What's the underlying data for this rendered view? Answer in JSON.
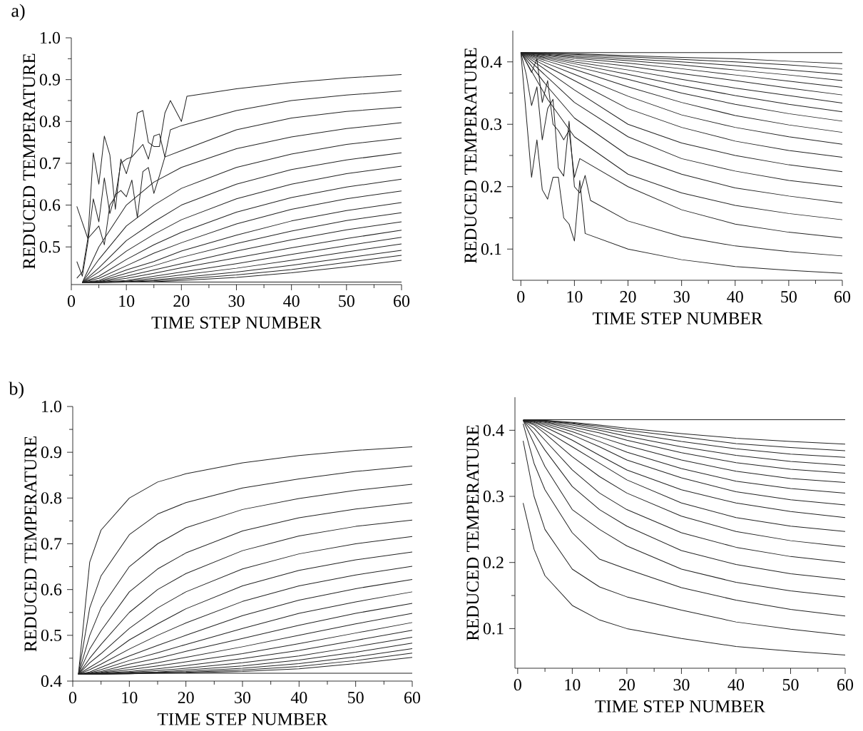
{
  "chart_data": [
    {
      "type": "line",
      "xlabel": "TIME STEP NUMBER",
      "ylabel": "REDUCED TEMPERATURE",
      "annotations": [
        "a)"
      ],
      "color": "#222222",
      "xlim": [
        0,
        60
      ],
      "ylim": [
        0.41,
        1.0
      ],
      "xticks": [
        0,
        10,
        20,
        30,
        40,
        50,
        60
      ],
      "yticks": [
        0.5,
        0.6,
        0.7,
        0.8,
        0.9,
        {
          "value": 1.0,
          "label": "1.0"
        }
      ],
      "x": [
        2,
        5,
        10,
        15,
        20,
        30,
        40,
        50,
        60
      ],
      "series": [
        {
          "x": [
            1,
            3,
            4,
            5,
            6,
            7,
            8,
            9,
            10,
            11,
            12,
            13,
            14,
            15,
            16,
            17,
            18,
            20,
            21,
            30,
            40,
            50,
            60
          ],
          "values": [
            0.597,
            0.52,
            0.725,
            0.65,
            0.765,
            0.72,
            0.59,
            0.71,
            0.675,
            0.72,
            0.82,
            0.826,
            0.75,
            0.74,
            0.74,
            0.82,
            0.85,
            0.8,
            0.86,
            0.878,
            0.893,
            0.904,
            0.912
          ]
        },
        {
          "x": [
            1,
            2,
            3,
            4,
            5,
            6,
            7,
            8,
            9,
            10,
            11,
            12,
            13,
            14,
            15,
            16,
            17,
            18,
            20,
            30,
            40,
            50,
            60
          ],
          "values": [
            0.465,
            0.43,
            0.51,
            0.615,
            0.56,
            0.665,
            0.58,
            0.625,
            0.635,
            0.62,
            0.66,
            0.57,
            0.68,
            0.69,
            0.628,
            0.67,
            0.715,
            0.78,
            0.79,
            0.826,
            0.85,
            0.863,
            0.873
          ]
        },
        {
          "x": [
            1,
            2,
            3,
            5,
            6,
            7,
            8,
            9,
            10,
            11,
            13,
            14,
            15,
            16,
            17,
            20,
            30,
            40,
            50,
            60
          ],
          "values": [
            0.425,
            0.44,
            0.52,
            0.55,
            0.505,
            0.6,
            0.62,
            0.7,
            0.71,
            0.715,
            0.745,
            0.71,
            0.765,
            0.77,
            0.715,
            0.73,
            0.78,
            0.808,
            0.824,
            0.834
          ]
        },
        {
          "values": [
            0.415,
            0.5,
            0.6,
            0.655,
            0.69,
            0.735,
            0.763,
            0.783,
            0.797
          ]
        },
        {
          "values": [
            0.415,
            0.47,
            0.55,
            0.6,
            0.64,
            0.69,
            0.722,
            0.745,
            0.76
          ]
        },
        {
          "values": [
            0.415,
            0.45,
            0.515,
            0.56,
            0.6,
            0.65,
            0.685,
            0.708,
            0.725
          ]
        },
        {
          "values": [
            0.415,
            0.44,
            0.49,
            0.53,
            0.565,
            0.615,
            0.65,
            0.675,
            0.693
          ]
        },
        {
          "values": [
            0.415,
            0.43,
            0.47,
            0.505,
            0.535,
            0.583,
            0.618,
            0.643,
            0.662
          ]
        },
        {
          "values": [
            0.415,
            0.425,
            0.455,
            0.485,
            0.51,
            0.555,
            0.59,
            0.615,
            0.634
          ]
        },
        {
          "values": [
            0.415,
            0.42,
            0.445,
            0.465,
            0.49,
            0.528,
            0.562,
            0.587,
            0.606
          ]
        },
        {
          "values": [
            0.415,
            0.418,
            0.437,
            0.455,
            0.475,
            0.508,
            0.538,
            0.563,
            0.582
          ]
        },
        {
          "values": [
            0.415,
            0.417,
            0.43,
            0.445,
            0.46,
            0.49,
            0.517,
            0.541,
            0.56
          ]
        },
        {
          "values": [
            0.415,
            0.416,
            0.425,
            0.437,
            0.45,
            0.474,
            0.498,
            0.52,
            0.54
          ]
        },
        {
          "values": [
            0.415,
            0.416,
            0.42,
            0.43,
            0.44,
            0.46,
            0.482,
            0.503,
            0.523
          ]
        },
        {
          "values": [
            0.415,
            0.415,
            0.418,
            0.425,
            0.433,
            0.449,
            0.468,
            0.488,
            0.507
          ]
        },
        {
          "values": [
            0.415,
            0.415,
            0.417,
            0.421,
            0.427,
            0.44,
            0.456,
            0.474,
            0.492
          ]
        },
        {
          "values": [
            0.415,
            0.415,
            0.416,
            0.419,
            0.423,
            0.433,
            0.446,
            0.463,
            0.48
          ]
        },
        {
          "values": [
            0.415,
            0.415,
            0.416,
            0.417,
            0.42,
            0.427,
            0.438,
            0.452,
            0.468
          ]
        },
        {
          "values": [
            0.416,
            0.416,
            0.416,
            0.416,
            0.416,
            0.416,
            0.416,
            0.416,
            0.416
          ]
        }
      ]
    },
    {
      "type": "line",
      "xlabel": "TIME STEP NUMBER",
      "ylabel": "REDUCED TEMPERATURE",
      "color": "#222222",
      "xlim": [
        -1.5,
        60
      ],
      "ylim": [
        0.05,
        0.45
      ],
      "xticks": [
        0,
        10,
        20,
        30,
        40,
        50,
        60
      ],
      "yticks": [
        0.1,
        0.2,
        0.3,
        0.4
      ],
      "x": [
        0,
        5,
        10,
        20,
        30,
        40,
        50,
        60
      ],
      "series": [
        {
          "x": [
            0,
            2,
            3,
            4,
            5,
            6,
            7,
            8,
            9,
            10,
            11,
            12,
            20,
            30,
            40,
            50,
            60
          ],
          "values": [
            0.415,
            0.215,
            0.275,
            0.195,
            0.18,
            0.215,
            0.215,
            0.15,
            0.14,
            0.113,
            0.21,
            0.125,
            0.1,
            0.083,
            0.072,
            0.066,
            0.061
          ]
        },
        {
          "x": [
            0,
            1,
            2,
            3,
            4,
            5,
            6,
            7,
            8,
            9,
            10,
            11,
            12,
            13,
            20,
            30,
            40,
            50,
            60
          ],
          "values": [
            0.415,
            0.38,
            0.33,
            0.36,
            0.275,
            0.325,
            0.34,
            0.23,
            0.217,
            0.305,
            0.2,
            0.19,
            0.218,
            0.178,
            0.145,
            0.12,
            0.105,
            0.096,
            0.089
          ]
        },
        {
          "x": [
            0,
            1,
            2,
            3,
            4,
            5,
            6,
            7,
            8,
            9,
            10,
            11,
            20,
            30,
            40,
            50,
            60
          ],
          "values": [
            0.415,
            0.4,
            0.383,
            0.405,
            0.335,
            0.37,
            0.3,
            0.29,
            0.275,
            0.29,
            0.215,
            0.245,
            0.2,
            0.163,
            0.14,
            0.127,
            0.118
          ]
        },
        {
          "values": [
            0.415,
            0.34,
            0.28,
            0.22,
            0.19,
            0.17,
            0.157,
            0.147
          ]
        },
        {
          "values": [
            0.415,
            0.36,
            0.31,
            0.25,
            0.22,
            0.198,
            0.185,
            0.174
          ]
        },
        {
          "values": [
            0.415,
            0.375,
            0.335,
            0.28,
            0.245,
            0.225,
            0.21,
            0.2
          ]
        },
        {
          "values": [
            0.415,
            0.385,
            0.355,
            0.3,
            0.27,
            0.25,
            0.235,
            0.224
          ]
        },
        {
          "values": [
            0.415,
            0.392,
            0.37,
            0.325,
            0.295,
            0.273,
            0.258,
            0.247
          ]
        },
        {
          "values": [
            0.415,
            0.397,
            0.38,
            0.345,
            0.315,
            0.295,
            0.28,
            0.268
          ]
        },
        {
          "values": [
            0.415,
            0.401,
            0.388,
            0.36,
            0.335,
            0.314,
            0.299,
            0.287
          ]
        },
        {
          "values": [
            0.415,
            0.404,
            0.393,
            0.372,
            0.35,
            0.332,
            0.317,
            0.305
          ]
        },
        {
          "values": [
            0.415,
            0.406,
            0.397,
            0.38,
            0.362,
            0.346,
            0.332,
            0.32
          ]
        },
        {
          "values": [
            0.415,
            0.408,
            0.4,
            0.387,
            0.372,
            0.358,
            0.346,
            0.334
          ]
        },
        {
          "values": [
            0.415,
            0.41,
            0.403,
            0.393,
            0.381,
            0.37,
            0.358,
            0.347
          ]
        },
        {
          "values": [
            0.415,
            0.411,
            0.406,
            0.398,
            0.389,
            0.379,
            0.369,
            0.359
          ]
        },
        {
          "values": [
            0.415,
            0.412,
            0.408,
            0.402,
            0.395,
            0.387,
            0.379,
            0.37
          ]
        },
        {
          "values": [
            0.415,
            0.413,
            0.41,
            0.405,
            0.4,
            0.394,
            0.387,
            0.38
          ]
        },
        {
          "values": [
            0.415,
            0.414,
            0.412,
            0.408,
            0.404,
            0.4,
            0.395,
            0.389
          ]
        },
        {
          "values": [
            0.415,
            0.414,
            0.413,
            0.41,
            0.407,
            0.405,
            0.401,
            0.397
          ]
        },
        {
          "values": [
            0.415,
            0.415,
            0.415,
            0.415,
            0.415,
            0.415,
            0.415,
            0.415
          ]
        }
      ]
    },
    {
      "type": "line",
      "xlabel": "TIME STEP NUMBER",
      "ylabel": "REDUCED TEMPERATURE",
      "annotations": [
        "b)"
      ],
      "color": "#222222",
      "xlim": [
        0,
        60
      ],
      "ylim": [
        0.4,
        1.0
      ],
      "xticks": [
        0,
        10,
        20,
        30,
        40,
        50,
        60
      ],
      "yticks": [
        0.4,
        0.5,
        0.6,
        0.7,
        0.8,
        0.9,
        {
          "value": 1.0,
          "label": "1.0"
        }
      ],
      "x": [
        1,
        3,
        5,
        10,
        15,
        20,
        30,
        40,
        50,
        60
      ],
      "series": [
        {
          "values": [
            0.415,
            0.66,
            0.73,
            0.8,
            0.835,
            0.853,
            0.877,
            0.893,
            0.904,
            0.912
          ]
        },
        {
          "values": [
            0.415,
            0.56,
            0.63,
            0.72,
            0.765,
            0.79,
            0.822,
            0.842,
            0.858,
            0.87
          ]
        },
        {
          "values": [
            0.415,
            0.5,
            0.56,
            0.65,
            0.7,
            0.735,
            0.775,
            0.799,
            0.817,
            0.83
          ]
        },
        {
          "values": [
            0.415,
            0.47,
            0.51,
            0.595,
            0.645,
            0.68,
            0.728,
            0.757,
            0.776,
            0.79
          ]
        },
        {
          "values": [
            0.415,
            0.45,
            0.48,
            0.55,
            0.6,
            0.635,
            0.685,
            0.717,
            0.738,
            0.752
          ]
        },
        {
          "values": [
            0.415,
            0.44,
            0.46,
            0.515,
            0.56,
            0.595,
            0.645,
            0.678,
            0.7,
            0.716
          ]
        },
        {
          "values": [
            0.415,
            0.43,
            0.445,
            0.49,
            0.525,
            0.558,
            0.608,
            0.642,
            0.665,
            0.682
          ]
        },
        {
          "values": [
            0.415,
            0.425,
            0.437,
            0.47,
            0.5,
            0.527,
            0.574,
            0.608,
            0.632,
            0.651
          ]
        },
        {
          "values": [
            0.415,
            0.42,
            0.43,
            0.455,
            0.478,
            0.5,
            0.543,
            0.577,
            0.602,
            0.622
          ]
        },
        {
          "values": [
            0.415,
            0.418,
            0.425,
            0.445,
            0.462,
            0.48,
            0.515,
            0.548,
            0.573,
            0.595
          ]
        },
        {
          "values": [
            0.415,
            0.417,
            0.421,
            0.437,
            0.45,
            0.465,
            0.493,
            0.522,
            0.548,
            0.57
          ]
        },
        {
          "values": [
            0.415,
            0.416,
            0.419,
            0.43,
            0.44,
            0.452,
            0.475,
            0.5,
            0.525,
            0.548
          ]
        },
        {
          "values": [
            0.415,
            0.416,
            0.418,
            0.425,
            0.433,
            0.442,
            0.46,
            0.482,
            0.505,
            0.528
          ]
        },
        {
          "values": [
            0.415,
            0.416,
            0.417,
            0.421,
            0.427,
            0.434,
            0.449,
            0.467,
            0.489,
            0.511
          ]
        },
        {
          "values": [
            0.415,
            0.415,
            0.416,
            0.419,
            0.423,
            0.428,
            0.44,
            0.455,
            0.475,
            0.496
          ]
        },
        {
          "values": [
            0.415,
            0.415,
            0.416,
            0.418,
            0.42,
            0.424,
            0.433,
            0.446,
            0.463,
            0.483
          ]
        },
        {
          "values": [
            0.415,
            0.415,
            0.415,
            0.417,
            0.419,
            0.421,
            0.428,
            0.438,
            0.453,
            0.471
          ]
        },
        {
          "values": [
            0.415,
            0.415,
            0.415,
            0.416,
            0.418,
            0.419,
            0.424,
            0.432,
            0.445,
            0.461
          ]
        },
        {
          "values": [
            0.415,
            0.415,
            0.415,
            0.416,
            0.417,
            0.418,
            0.421,
            0.427,
            0.438,
            0.452
          ]
        },
        {
          "values": [
            0.417,
            0.417,
            0.417,
            0.417,
            0.417,
            0.417,
            0.417,
            0.417,
            0.417,
            0.417
          ]
        }
      ]
    },
    {
      "type": "line",
      "xlabel": "TIME STEP NUMBER",
      "ylabel": "REDUCED TEMPERATURE",
      "color": "#222222",
      "xlim": [
        -0.5,
        60
      ],
      "ylim": [
        0.04,
        0.45
      ],
      "xticks": [
        0,
        10,
        20,
        30,
        40,
        50,
        60
      ],
      "yticks": [
        0.1,
        0.2,
        0.3,
        0.4
      ],
      "x": [
        1,
        3,
        5,
        10,
        15,
        20,
        30,
        40,
        50,
        60
      ],
      "series": [
        {
          "values": [
            0.29,
            0.22,
            0.18,
            0.135,
            0.113,
            0.1,
            0.085,
            0.073,
            0.066,
            0.06
          ]
        },
        {
          "values": [
            0.384,
            0.3,
            0.25,
            0.19,
            0.163,
            0.148,
            0.128,
            0.11,
            0.099,
            0.09
          ]
        },
        {
          "values": [
            0.41,
            0.35,
            0.31,
            0.245,
            0.205,
            0.19,
            0.162,
            0.143,
            0.129,
            0.119
          ]
        },
        {
          "values": [
            0.415,
            0.38,
            0.345,
            0.28,
            0.25,
            0.225,
            0.19,
            0.17,
            0.157,
            0.148
          ]
        },
        {
          "values": [
            0.415,
            0.395,
            0.37,
            0.315,
            0.28,
            0.255,
            0.218,
            0.197,
            0.183,
            0.174
          ]
        },
        {
          "values": [
            0.415,
            0.403,
            0.385,
            0.34,
            0.305,
            0.28,
            0.245,
            0.223,
            0.209,
            0.2
          ]
        },
        {
          "values": [
            0.415,
            0.408,
            0.395,
            0.36,
            0.33,
            0.305,
            0.27,
            0.247,
            0.233,
            0.224
          ]
        },
        {
          "values": [
            0.415,
            0.41,
            0.4,
            0.375,
            0.35,
            0.325,
            0.29,
            0.268,
            0.255,
            0.247
          ]
        },
        {
          "values": [
            0.415,
            0.412,
            0.405,
            0.385,
            0.362,
            0.34,
            0.31,
            0.29,
            0.277,
            0.268
          ]
        },
        {
          "values": [
            0.415,
            0.413,
            0.408,
            0.393,
            0.375,
            0.355,
            0.328,
            0.307,
            0.295,
            0.287
          ]
        },
        {
          "values": [
            0.415,
            0.414,
            0.41,
            0.398,
            0.383,
            0.367,
            0.342,
            0.323,
            0.312,
            0.305
          ]
        },
        {
          "values": [
            0.415,
            0.414,
            0.412,
            0.402,
            0.39,
            0.377,
            0.355,
            0.338,
            0.327,
            0.321
          ]
        },
        {
          "values": [
            0.415,
            0.415,
            0.413,
            0.405,
            0.396,
            0.385,
            0.366,
            0.351,
            0.341,
            0.335
          ]
        },
        {
          "values": [
            0.415,
            0.415,
            0.414,
            0.408,
            0.4,
            0.391,
            0.375,
            0.362,
            0.353,
            0.347
          ]
        },
        {
          "values": [
            0.415,
            0.415,
            0.414,
            0.41,
            0.403,
            0.396,
            0.383,
            0.372,
            0.364,
            0.359
          ]
        },
        {
          "values": [
            0.415,
            0.415,
            0.415,
            0.411,
            0.406,
            0.4,
            0.39,
            0.38,
            0.374,
            0.369
          ]
        },
        {
          "values": [
            0.415,
            0.415,
            0.415,
            0.412,
            0.408,
            0.403,
            0.395,
            0.388,
            0.383,
            0.379
          ]
        },
        {
          "values": [
            0.416,
            0.416,
            0.416,
            0.416,
            0.416,
            0.416,
            0.416,
            0.416,
            0.416,
            0.416
          ]
        }
      ]
    }
  ]
}
